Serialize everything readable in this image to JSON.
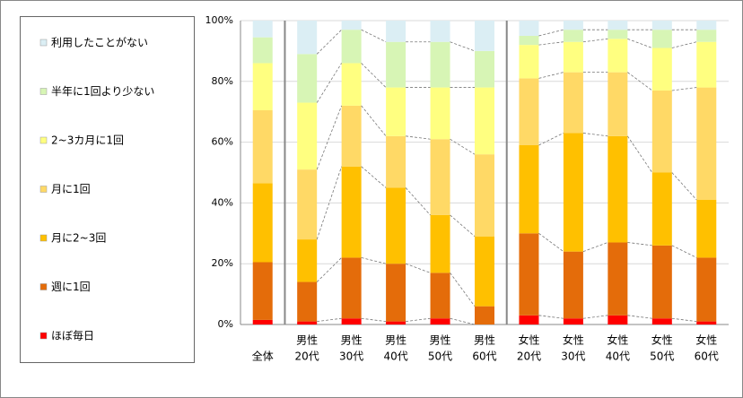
{
  "chart_data": {
    "type": "stacked_bar",
    "categories": [
      [
        "全体"
      ],
      [
        "男性",
        "20代"
      ],
      [
        "男性",
        "30代"
      ],
      [
        "男性",
        "40代"
      ],
      [
        "男性",
        "50代"
      ],
      [
        "男性",
        "60代"
      ],
      [
        "女性",
        "20代"
      ],
      [
        "女性",
        "30代"
      ],
      [
        "女性",
        "40代"
      ],
      [
        "女性",
        "50代"
      ],
      [
        "女性",
        "60代"
      ]
    ],
    "series": [
      {
        "name": "ほぼ毎日",
        "color": "#ff0000",
        "values": [
          1.5,
          1,
          2,
          1,
          2,
          0,
          3,
          2,
          3,
          2,
          1
        ]
      },
      {
        "name": "週に1回",
        "color": "#e46c0a",
        "values": [
          19,
          13,
          20,
          19,
          15,
          6,
          27,
          22,
          24,
          24,
          21
        ]
      },
      {
        "name": "月に2~3回",
        "color": "#ffc000",
        "values": [
          26,
          14,
          30,
          25,
          19,
          23,
          29,
          39,
          35,
          24,
          19
        ]
      },
      {
        "name": "月に1回",
        "color": "#ffd966",
        "values": [
          24,
          23,
          20,
          17,
          25,
          27,
          22,
          20,
          21,
          27,
          37
        ]
      },
      {
        "name": "2~3カ月に1回",
        "color": "#ffff80",
        "values": [
          15.5,
          22,
          14,
          16,
          17,
          22,
          11,
          10,
          11,
          14,
          15
        ]
      },
      {
        "name": "半年に1回より少ない",
        "color": "#d7f5b5",
        "values": [
          8.5,
          16,
          11,
          15,
          15,
          12,
          3,
          4,
          3,
          6,
          4
        ]
      },
      {
        "name": "利用したことがない",
        "color": "#dbeef4",
        "values": [
          5.5,
          11,
          3,
          7,
          7,
          10,
          5,
          3,
          3,
          3,
          3
        ]
      }
    ],
    "ylim": [
      0,
      100
    ],
    "yticks": [
      {
        "value": 0,
        "label": "0%"
      },
      {
        "value": 20,
        "label": "20%"
      },
      {
        "value": 40,
        "label": "40%"
      },
      {
        "value": 60,
        "label": "60%"
      },
      {
        "value": 80,
        "label": "80%"
      },
      {
        "value": 100,
        "label": "100%"
      }
    ],
    "grid": true,
    "legend": "left"
  }
}
